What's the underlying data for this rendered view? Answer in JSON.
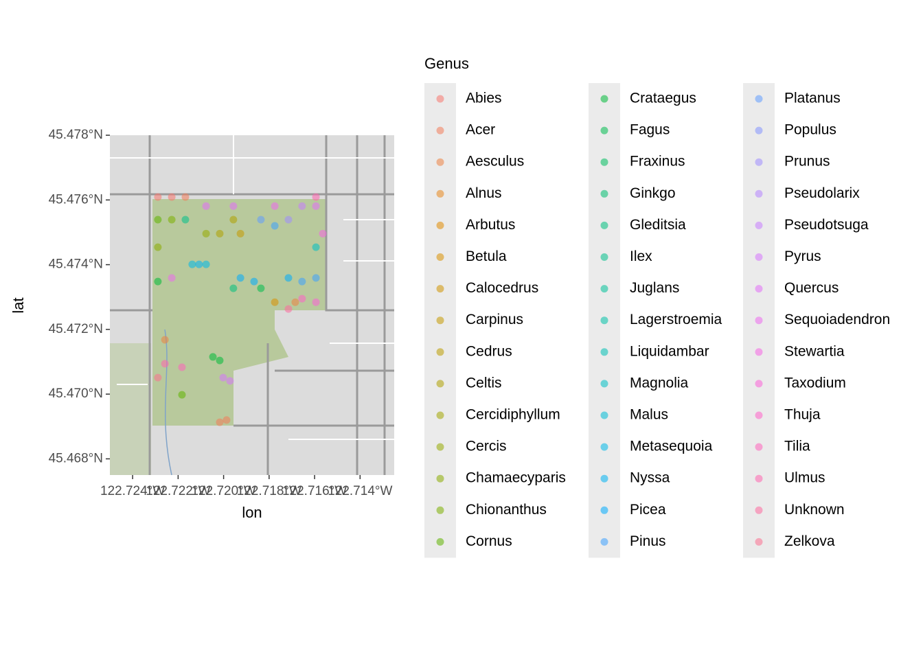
{
  "chart_data": {
    "type": "scatter",
    "x_label": "lon",
    "y_label": "lat",
    "legend_title": "Genus",
    "xlim": [
      -122.725,
      -122.7125
    ],
    "ylim": [
      45.4675,
      45.478
    ],
    "xticks": [
      {
        "value": -122.724,
        "label": "122.724°W"
      },
      {
        "value": -122.722,
        "label": "122.722°W"
      },
      {
        "value": -122.72,
        "label": "122.720°W"
      },
      {
        "value": -122.718,
        "label": "122.718°W"
      },
      {
        "value": -122.716,
        "label": "122.716°W"
      },
      {
        "value": -122.714,
        "label": "122.714°W"
      }
    ],
    "yticks": [
      {
        "value": 45.468,
        "label": "45.468°N"
      },
      {
        "value": 45.47,
        "label": "45.470°N"
      },
      {
        "value": 45.472,
        "label": "45.472°N"
      },
      {
        "value": 45.474,
        "label": "45.474°N"
      },
      {
        "value": 45.476,
        "label": "45.476°N"
      },
      {
        "value": 45.478,
        "label": "45.478°N"
      }
    ],
    "series": [
      {
        "name": "Abies",
        "color": "#F8766D",
        "x": [
          -122.72289,
          -122.72228
        ],
        "y": [
          45.47609,
          45.47609
        ]
      },
      {
        "name": "Acer",
        "color": "#F37B59",
        "x": [
          -122.72168,
          -122.72017,
          -122.71987
        ],
        "y": [
          45.47609,
          45.46913,
          45.4692
        ]
      },
      {
        "name": "Aesculus",
        "color": "#ED8141",
        "x": [
          -122.71685,
          -122.72258
        ],
        "y": [
          45.47284,
          45.47168
        ]
      },
      {
        "name": "Alnus",
        "color": "#E7861B",
        "x": [],
        "y": []
      },
      {
        "name": "Arbutus",
        "color": "#E08B00",
        "x": [],
        "y": []
      },
      {
        "name": "Betula",
        "color": "#D89000",
        "x": [
          -122.71775
        ],
        "y": [
          45.47284
        ]
      },
      {
        "name": "Calocedrus",
        "color": "#CF9400",
        "x": [],
        "y": []
      },
      {
        "name": "Carpinus",
        "color": "#C59900",
        "x": [
          -122.71926
        ],
        "y": [
          45.47496
        ]
      },
      {
        "name": "Cedrus",
        "color": "#BB9D00",
        "x": [],
        "y": []
      },
      {
        "name": "Celtis",
        "color": "#AFA100",
        "x": [
          -122.72017,
          -122.71957
        ],
        "y": [
          45.47496,
          45.47539
        ]
      },
      {
        "name": "Cercidiphyllum",
        "color": "#A3A500",
        "x": [],
        "y": []
      },
      {
        "name": "Cercis",
        "color": "#95A900",
        "x": [
          -122.72077
        ],
        "y": [
          45.47496
        ]
      },
      {
        "name": "Chamaecyparis",
        "color": "#8AAB00",
        "x": [
          -122.72289
        ],
        "y": [
          45.47454
        ]
      },
      {
        "name": "Chionanthus",
        "color": "#7CAE00",
        "x": [
          -122.72228
        ],
        "y": [
          45.47539
        ]
      },
      {
        "name": "Cornus",
        "color": "#5EB300",
        "x": [
          -122.72289,
          -122.72183
        ],
        "y": [
          45.47539,
          45.46998
        ]
      },
      {
        "name": "Crataegus",
        "color": "#00BA38",
        "x": [
          -122.72289,
          -122.72047,
          -122.72017
        ],
        "y": [
          45.47348,
          45.47115,
          45.47104
        ]
      },
      {
        "name": "Fagus",
        "color": "#00BB4E",
        "x": [
          -122.71836
        ],
        "y": [
          45.47327
        ]
      },
      {
        "name": "Fraxinus",
        "color": "#00BD5F",
        "x": [],
        "y": []
      },
      {
        "name": "Ginkgo",
        "color": "#00BE6F",
        "x": [],
        "y": []
      },
      {
        "name": "Gleditsia",
        "color": "#00BF7D",
        "x": [
          -122.71957
        ],
        "y": [
          45.47327
        ]
      },
      {
        "name": "Ilex",
        "color": "#00C08B",
        "x": [
          -122.72168
        ],
        "y": [
          45.47539
        ]
      },
      {
        "name": "Juglans",
        "color": "#00C199",
        "x": [],
        "y": []
      },
      {
        "name": "Lagerstroemia",
        "color": "#00C1A7",
        "x": [],
        "y": []
      },
      {
        "name": "Liquidambar",
        "color": "#00C0B4",
        "x": [],
        "y": []
      },
      {
        "name": "Magnolia",
        "color": "#00BFC4",
        "x": [
          -122.71594
        ],
        "y": [
          45.47454
        ]
      },
      {
        "name": "Malus",
        "color": "#00BCD6",
        "x": [],
        "y": []
      },
      {
        "name": "Metasequoia",
        "color": "#00B8E7",
        "x": [
          -122.72138,
          -122.72077
        ],
        "y": [
          45.47401,
          45.47401
        ]
      },
      {
        "name": "Nyssa",
        "color": "#00B2F3",
        "x": [
          -122.72108
        ],
        "y": [
          45.47401
        ]
      },
      {
        "name": "Picea",
        "color": "#00ABFD",
        "x": [
          -122.71926,
          -122.71866,
          -122.71715
        ],
        "y": [
          45.47359,
          45.47348,
          45.47359
        ]
      },
      {
        "name": "Pinus",
        "color": "#3DA1FF",
        "x": [
          -122.71775,
          -122.71655,
          -122.71594
        ],
        "y": [
          45.4752,
          45.47348,
          45.47359
        ]
      },
      {
        "name": "Platanus",
        "color": "#619CFF",
        "x": [
          -122.71836
        ],
        "y": [
          45.47539
        ]
      },
      {
        "name": "Populus",
        "color": "#8494FF",
        "x": [],
        "y": []
      },
      {
        "name": "Prunus",
        "color": "#9F8CFF",
        "x": [
          -122.71715
        ],
        "y": [
          45.47539
        ]
      },
      {
        "name": "Pseudolarix",
        "color": "#B584FF",
        "x": [],
        "y": []
      },
      {
        "name": "Pseudotsuga",
        "color": "#C77CFF",
        "x": [
          -122.71655
        ],
        "y": [
          45.47581
        ]
      },
      {
        "name": "Pyrus",
        "color": "#D575FE",
        "x": [
          -122.71972,
          -122.72002
        ],
        "y": [
          45.47041,
          45.47051
        ]
      },
      {
        "name": "Quercus",
        "color": "#E26EF7",
        "x": [
          -122.72077,
          -122.71957,
          -122.71594
        ],
        "y": [
          45.47581,
          45.47581,
          45.47581
        ]
      },
      {
        "name": "Sequoiadendron",
        "color": "#EC69EF",
        "x": [
          -122.71775,
          -122.72228
        ],
        "y": [
          45.47581,
          45.47359
        ]
      },
      {
        "name": "Stewartia",
        "color": "#F564E3",
        "x": [
          -122.71564
        ],
        "y": [
          45.47496
        ]
      },
      {
        "name": "Taxodium",
        "color": "#FB61D7",
        "x": [
          -122.71594
        ],
        "y": [
          45.47284
        ]
      },
      {
        "name": "Thuja",
        "color": "#FF61C9",
        "x": [
          -122.71655
        ],
        "y": [
          45.47295
        ]
      },
      {
        "name": "Tilia",
        "color": "#FF62BC",
        "x": [
          -122.72183
        ],
        "y": [
          45.47083
        ]
      },
      {
        "name": "Ulmus",
        "color": "#FF65AE",
        "x": [
          -122.72258,
          -122.71594
        ],
        "y": [
          45.47094,
          45.47609
        ]
      },
      {
        "name": "Unknown",
        "color": "#FE6A9F",
        "x": [
          -122.71715
        ],
        "y": [
          45.47263
        ]
      },
      {
        "name": "Zelkova",
        "color": "#FB708F",
        "x": [
          -122.72289
        ],
        "y": [
          45.47051
        ]
      }
    ]
  }
}
